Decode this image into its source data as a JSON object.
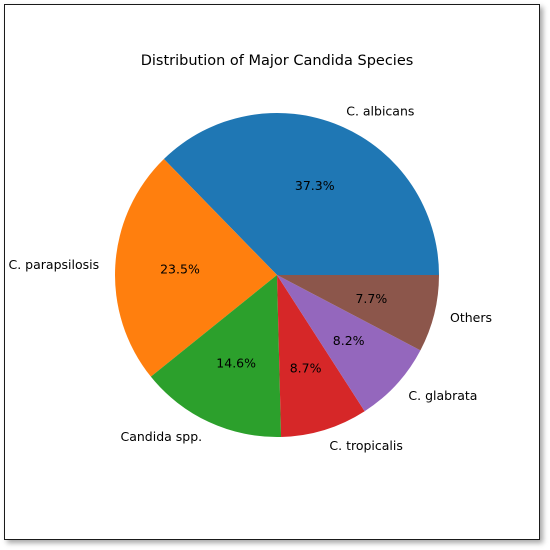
{
  "chart_data": {
    "type": "pie",
    "title": "Distribution of Major Candida Species",
    "slices": [
      {
        "label": "C. albicans",
        "value": 37.3,
        "pct_label": "37.3%",
        "color": "#1f77b4"
      },
      {
        "label": "C. parapsilosis",
        "value": 23.5,
        "pct_label": "23.5%",
        "color": "#ff7f0e"
      },
      {
        "label": "Candida spp.",
        "value": 14.6,
        "pct_label": "14.6%",
        "color": "#2ca02c"
      },
      {
        "label": "C. tropicalis",
        "value": 8.7,
        "pct_label": "8.7%",
        "color": "#d62728"
      },
      {
        "label": "C. glabrata",
        "value": 8.2,
        "pct_label": "8.2%",
        "color": "#9467bd"
      },
      {
        "label": "Others",
        "value": 7.7,
        "pct_label": "7.7%",
        "color": "#8c564b"
      }
    ],
    "start_angle_deg": 0,
    "direction": "counterclockwise",
    "legend": "none"
  }
}
